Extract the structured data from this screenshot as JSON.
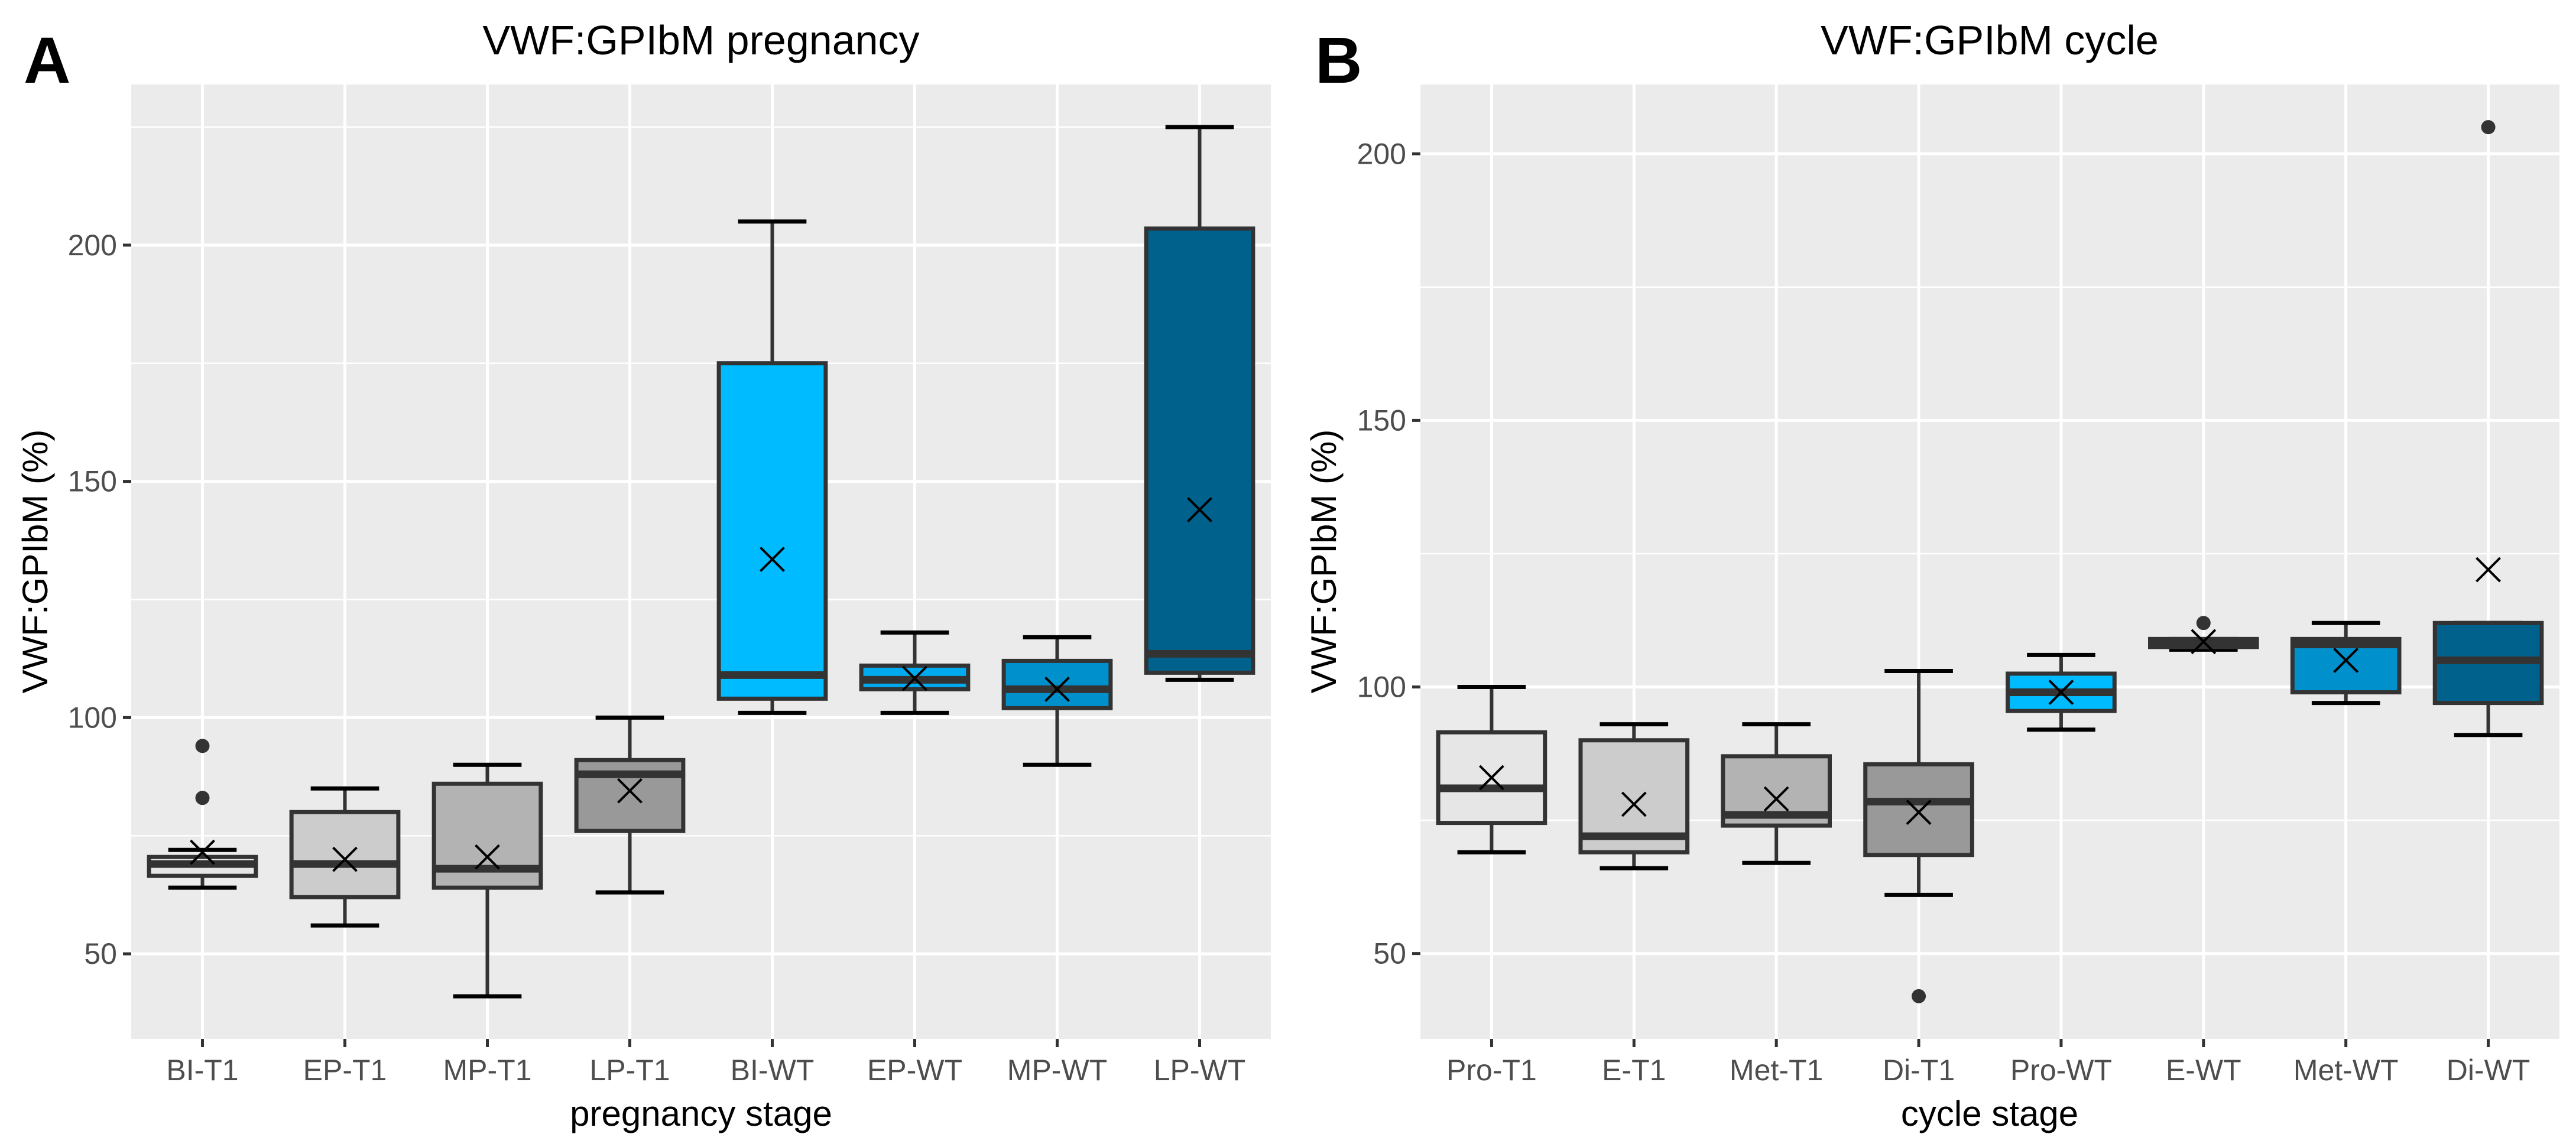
{
  "chart_data": [
    {
      "type": "box",
      "panel_label": "A",
      "title": "VWF:GPIbM pregnancy",
      "xlabel": "pregnancy stage",
      "ylabel": "VWF:GPIbM (%)",
      "ylim": [
        32,
        234
      ],
      "yticks": [
        50,
        100,
        150,
        200
      ],
      "grid": true,
      "categories": [
        "BI-T1",
        "EP-T1",
        "MP-T1",
        "LP-T1",
        "BI-WT",
        "EP-WT",
        "MP-WT",
        "LP-WT"
      ],
      "boxes": [
        {
          "category": "BI-T1",
          "color": "#e6e6e6",
          "whisker_low": 64,
          "q1": 66.5,
          "median": 69,
          "q3": 70.5,
          "whisker_high": 72,
          "mean": 71.5,
          "outliers": [
            83,
            94
          ]
        },
        {
          "category": "EP-T1",
          "color": "#cccccc",
          "whisker_low": 56,
          "q1": 62,
          "median": 69,
          "q3": 80,
          "whisker_high": 85,
          "mean": 70,
          "outliers": []
        },
        {
          "category": "MP-T1",
          "color": "#b3b3b3",
          "whisker_low": 41,
          "q1": 64,
          "median": 68,
          "q3": 86,
          "whisker_high": 90,
          "mean": 70.5,
          "outliers": []
        },
        {
          "category": "LP-T1",
          "color": "#999999",
          "whisker_low": 63,
          "q1": 76,
          "median": 88,
          "q3": 91,
          "whisker_high": 100,
          "mean": 84.5,
          "outliers": []
        },
        {
          "category": "BI-WT",
          "color": "#00bbff",
          "whisker_low": 101,
          "q1": 104,
          "median": 109,
          "q3": 175,
          "whisker_high": 205,
          "mean": 133.5,
          "outliers": []
        },
        {
          "category": "EP-WT",
          "color": "#00aaee",
          "whisker_low": 101,
          "q1": 106,
          "median": 108,
          "q3": 111,
          "whisker_high": 118,
          "mean": 108.3,
          "outliers": []
        },
        {
          "category": "MP-WT",
          "color": "#0090cc",
          "whisker_low": 90,
          "q1": 102,
          "median": 106,
          "q3": 112,
          "whisker_high": 117,
          "mean": 106,
          "outliers": []
        },
        {
          "category": "LP-WT",
          "color": "#00628c",
          "whisker_low": 108,
          "q1": 109.5,
          "median": 113.5,
          "q3": 203.5,
          "whisker_high": 225,
          "mean": 144,
          "outliers": []
        }
      ]
    },
    {
      "type": "box",
      "panel_label": "B",
      "title": "VWF:GPIbM cycle",
      "xlabel": "cycle stage",
      "ylabel": "VWF:GPIbM (%)",
      "ylim": [
        34,
        213
      ],
      "yticks": [
        50,
        100,
        150,
        200
      ],
      "grid": true,
      "categories": [
        "Pro-T1",
        "E-T1",
        "Met-T1",
        "Di-T1",
        "Pro-WT",
        "E-WT",
        "Met-WT",
        "Di-WT"
      ],
      "boxes": [
        {
          "category": "Pro-T1",
          "color": "#e6e6e6",
          "whisker_low": 69,
          "q1": 74.5,
          "median": 81,
          "q3": 91.5,
          "whisker_high": 100,
          "mean": 83,
          "outliers": []
        },
        {
          "category": "E-T1",
          "color": "#cccccc",
          "whisker_low": 66,
          "q1": 69,
          "median": 72,
          "q3": 90,
          "whisker_high": 93,
          "mean": 78,
          "outliers": []
        },
        {
          "category": "Met-T1",
          "color": "#b3b3b3",
          "whisker_low": 67,
          "q1": 74,
          "median": 76,
          "q3": 87,
          "whisker_high": 93,
          "mean": 79,
          "outliers": []
        },
        {
          "category": "Di-T1",
          "color": "#999999",
          "whisker_low": 61,
          "q1": 68.5,
          "median": 78.5,
          "q3": 85.5,
          "whisker_high": 103,
          "mean": 76.5,
          "outliers": [
            42
          ]
        },
        {
          "category": "Pro-WT",
          "color": "#00bbff",
          "whisker_low": 92,
          "q1": 95.5,
          "median": 99,
          "q3": 102.5,
          "whisker_high": 106,
          "mean": 99,
          "outliers": []
        },
        {
          "category": "E-WT",
          "color": "#00aaee",
          "whisker_low": 107,
          "q1": 107.5,
          "median": 108,
          "q3": 109,
          "whisker_high": 109,
          "mean": 108.5,
          "outliers": [
            112
          ]
        },
        {
          "category": "Met-WT",
          "color": "#0090cc",
          "whisker_low": 97,
          "q1": 99,
          "median": 108,
          "q3": 109,
          "whisker_high": 112,
          "mean": 105,
          "outliers": []
        },
        {
          "category": "Di-WT",
          "color": "#00628c",
          "whisker_low": 91,
          "q1": 97,
          "median": 105,
          "q3": 112,
          "whisker_high": 112,
          "mean": 122,
          "outliers": [
            205
          ]
        }
      ]
    }
  ]
}
